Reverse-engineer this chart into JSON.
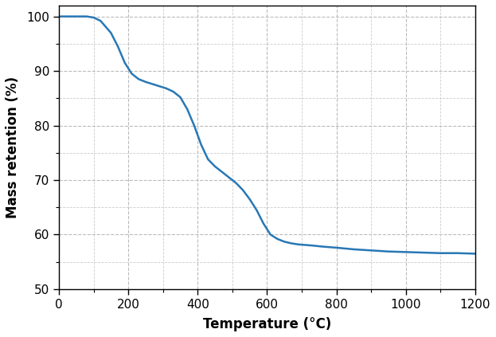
{
  "title": "",
  "xlabel": "Temperature (°C)",
  "ylabel": "Mass retention (%)",
  "line_color": "#2878b5",
  "line_width": 1.8,
  "xlim": [
    0,
    1200
  ],
  "ylim": [
    50,
    102
  ],
  "xticks": [
    0,
    200,
    400,
    600,
    800,
    1000,
    1200
  ],
  "yticks": [
    50,
    60,
    70,
    80,
    90,
    100
  ],
  "grid_major_color": "#bbbbbb",
  "grid_minor_color": "#cccccc",
  "grid_style": "--",
  "background_color": "#ffffff",
  "x": [
    0,
    50,
    80,
    100,
    120,
    150,
    170,
    190,
    210,
    230,
    250,
    270,
    290,
    310,
    330,
    350,
    370,
    390,
    410,
    430,
    450,
    470,
    490,
    510,
    530,
    550,
    570,
    590,
    610,
    630,
    650,
    670,
    690,
    710,
    730,
    760,
    800,
    850,
    900,
    950,
    1000,
    1050,
    1100,
    1150,
    1200
  ],
  "y": [
    100.0,
    100.0,
    100.0,
    99.8,
    99.2,
    97.0,
    94.5,
    91.5,
    89.5,
    88.5,
    88.0,
    87.6,
    87.2,
    86.8,
    86.2,
    85.2,
    83.0,
    80.0,
    76.5,
    73.8,
    72.5,
    71.5,
    70.5,
    69.5,
    68.2,
    66.5,
    64.5,
    62.0,
    60.0,
    59.2,
    58.7,
    58.4,
    58.2,
    58.1,
    58.0,
    57.8,
    57.6,
    57.3,
    57.1,
    56.9,
    56.8,
    56.7,
    56.6,
    56.6,
    56.5
  ]
}
